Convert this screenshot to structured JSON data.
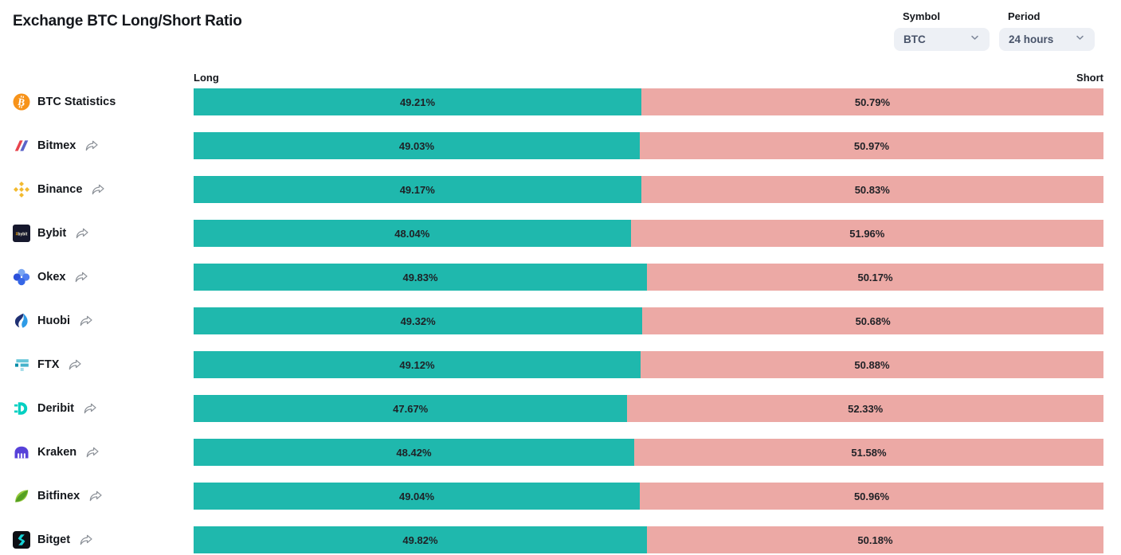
{
  "title": "Exchange BTC Long/Short Ratio",
  "controls": {
    "symbol": {
      "label": "Symbol",
      "value": "BTC",
      "icon": "chevron-down-icon"
    },
    "period": {
      "label": "Period",
      "value": "24 hours",
      "icon": "chevron-down-icon"
    }
  },
  "chart_data": {
    "type": "bar",
    "subtype": "horizontal-stacked-100-percent",
    "title": "Exchange BTC Long/Short Ratio",
    "long_header": "Long",
    "short_header": "Short",
    "unit": "%",
    "value_range": [
      0,
      100
    ],
    "colors": {
      "long": "#1fb8ad",
      "short": "#eca9a5"
    },
    "rows": [
      {
        "name": "BTC Statistics",
        "icon": "btc-statistics-icon",
        "long": 49.21,
        "short": 50.79,
        "has_link": false
      },
      {
        "name": "Bitmex",
        "icon": "bitmex-icon",
        "long": 49.03,
        "short": 50.97,
        "has_link": true
      },
      {
        "name": "Binance",
        "icon": "binance-icon",
        "long": 49.17,
        "short": 50.83,
        "has_link": true
      },
      {
        "name": "Bybit",
        "icon": "bybit-icon",
        "long": 48.04,
        "short": 51.96,
        "has_link": true
      },
      {
        "name": "Okex",
        "icon": "okex-icon",
        "long": 49.83,
        "short": 50.17,
        "has_link": true
      },
      {
        "name": "Huobi",
        "icon": "huobi-icon",
        "long": 49.32,
        "short": 50.68,
        "has_link": true
      },
      {
        "name": "FTX",
        "icon": "ftx-icon",
        "long": 49.12,
        "short": 50.88,
        "has_link": true
      },
      {
        "name": "Deribit",
        "icon": "deribit-icon",
        "long": 47.67,
        "short": 52.33,
        "has_link": true
      },
      {
        "name": "Kraken",
        "icon": "kraken-icon",
        "long": 48.42,
        "short": 51.58,
        "has_link": true
      },
      {
        "name": "Bitfinex",
        "icon": "bitfinex-icon",
        "long": 49.04,
        "short": 50.96,
        "has_link": true
      },
      {
        "name": "Bitget",
        "icon": "bitget-icon",
        "long": 49.82,
        "short": 50.18,
        "has_link": true
      }
    ]
  }
}
